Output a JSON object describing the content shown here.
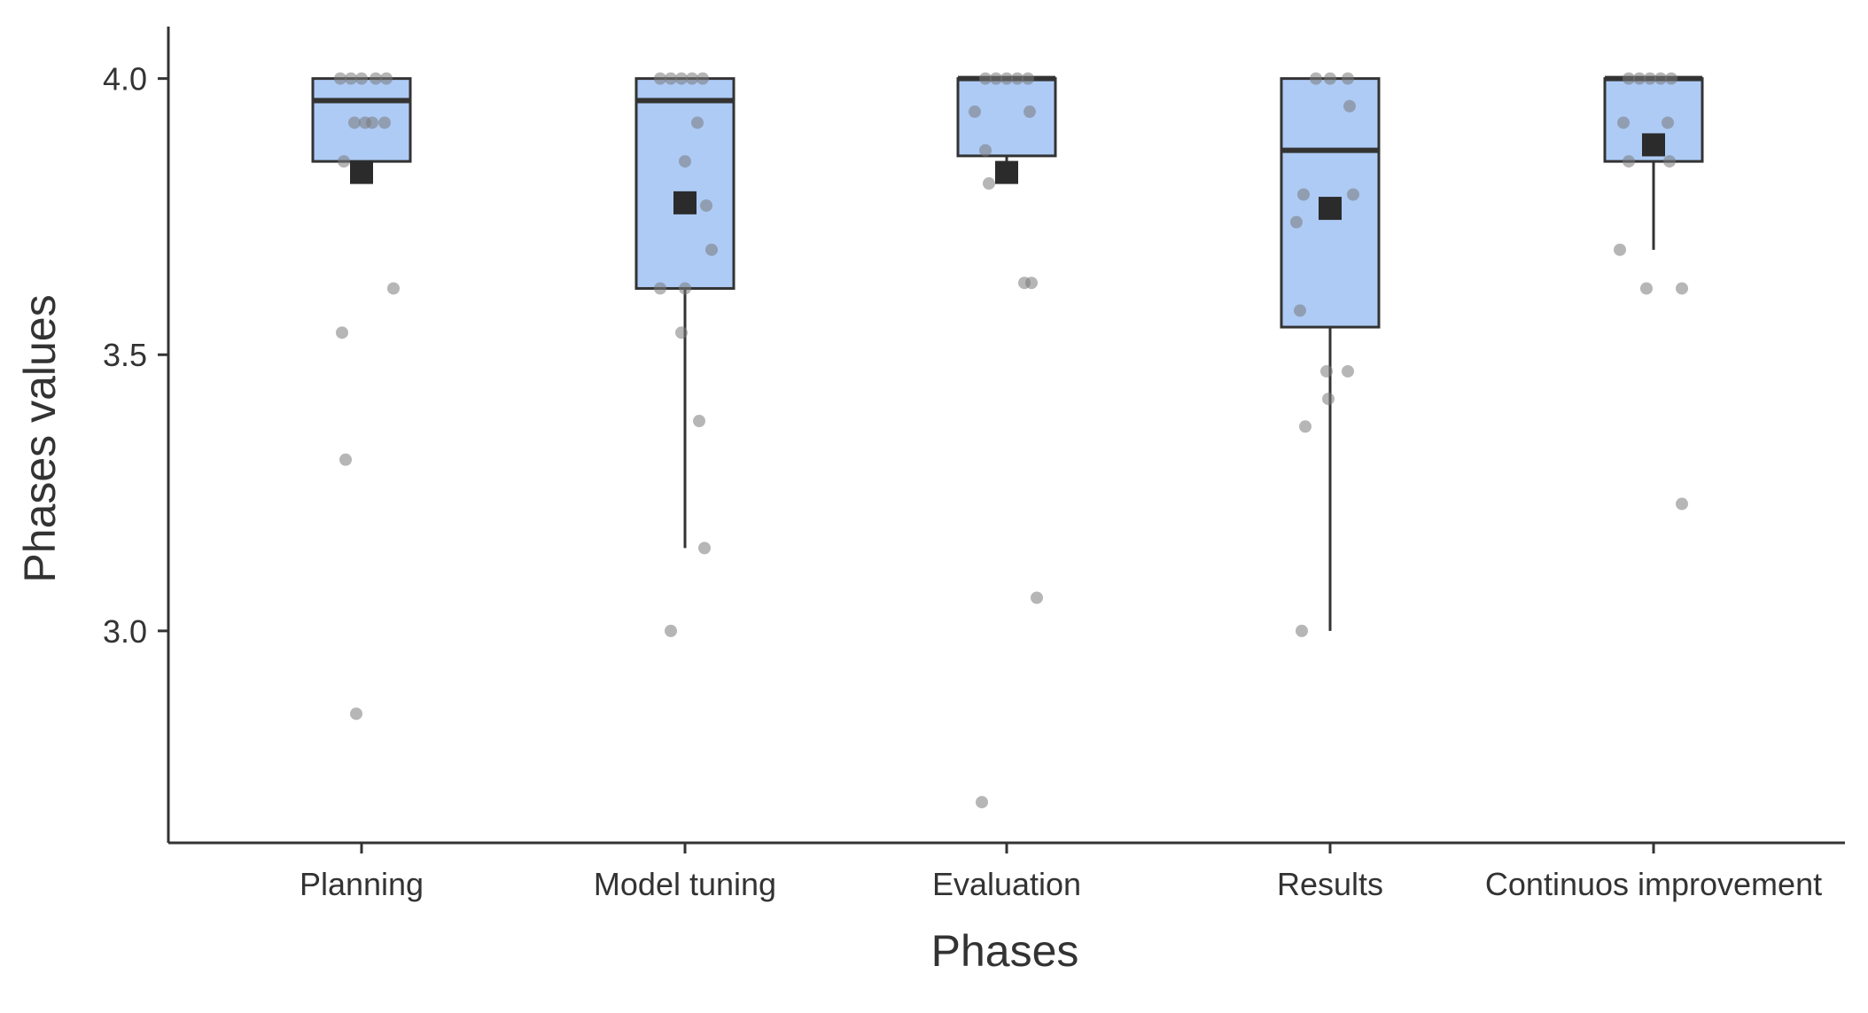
{
  "chart_data": {
    "type": "boxplot",
    "title": "",
    "xlabel": "Phases",
    "ylabel": "Phases values",
    "ylim": [
      2.65,
      4.07
    ],
    "yticks": [
      3.0,
      3.5,
      4.0
    ],
    "ytick_labels": [
      "3.0",
      "3.5",
      "4.0"
    ],
    "grid": false,
    "legend": "none",
    "colors": {
      "box_fill": "#aecbf5",
      "line": "#333333",
      "point": "#7a7a7a",
      "mean": "#2b2b2b"
    },
    "categories": [
      "Planning",
      "Model tuning",
      "Evaluation",
      "Results",
      "Continuos improvement"
    ],
    "series": [
      {
        "name": "Planning",
        "q1": 3.85,
        "median": 3.96,
        "q3": 4.0,
        "whisker_low": 3.85,
        "whisker_high": 4.0,
        "mean": 3.83,
        "points": [
          [
            -0.12,
            4.0
          ],
          [
            -0.06,
            4.0
          ],
          [
            0.0,
            4.0
          ],
          [
            0.08,
            4.0
          ],
          [
            0.14,
            4.0
          ],
          [
            -0.04,
            3.92
          ],
          [
            0.02,
            3.92
          ],
          [
            0.06,
            3.92
          ],
          [
            0.13,
            3.92
          ],
          [
            -0.1,
            3.85
          ],
          [
            0.18,
            3.62
          ],
          [
            -0.11,
            3.54
          ],
          [
            -0.09,
            3.31
          ],
          [
            -0.03,
            2.85
          ]
        ]
      },
      {
        "name": "Model tuning",
        "q1": 3.62,
        "median": 3.96,
        "q3": 4.0,
        "whisker_low": 3.15,
        "whisker_high": 4.0,
        "mean": 3.775,
        "points": [
          [
            -0.14,
            4.0
          ],
          [
            -0.08,
            4.0
          ],
          [
            -0.02,
            4.0
          ],
          [
            0.04,
            4.0
          ],
          [
            0.1,
            4.0
          ],
          [
            0.07,
            3.92
          ],
          [
            0.0,
            3.85
          ],
          [
            0.12,
            3.77
          ],
          [
            0.15,
            3.69
          ],
          [
            -0.14,
            3.62
          ],
          [
            0.0,
            3.62
          ],
          [
            -0.02,
            3.54
          ],
          [
            0.08,
            3.38
          ],
          [
            0.11,
            3.15
          ],
          [
            -0.08,
            3.0
          ]
        ]
      },
      {
        "name": "Evaluation",
        "q1": 3.86,
        "median": 4.0,
        "q3": 4.0,
        "whisker_low": 3.83,
        "whisker_high": 4.0,
        "mean": 3.83,
        "points": [
          [
            -0.12,
            4.0
          ],
          [
            -0.06,
            4.0
          ],
          [
            0.0,
            4.0
          ],
          [
            0.06,
            4.0
          ],
          [
            0.12,
            4.0
          ],
          [
            -0.18,
            3.94
          ],
          [
            0.13,
            3.94
          ],
          [
            -0.12,
            3.87
          ],
          [
            -0.1,
            3.81
          ],
          [
            0.1,
            3.63
          ],
          [
            0.14,
            3.63
          ],
          [
            0.17,
            3.06
          ],
          [
            -0.14,
            2.69
          ]
        ]
      },
      {
        "name": "Results",
        "q1": 3.55,
        "median": 3.87,
        "q3": 4.0,
        "whisker_low": 3.0,
        "whisker_high": 4.0,
        "mean": 3.765,
        "points": [
          [
            -0.08,
            4.0
          ],
          [
            0.0,
            4.0
          ],
          [
            0.1,
            4.0
          ],
          [
            0.11,
            3.95
          ],
          [
            -0.15,
            3.79
          ],
          [
            0.13,
            3.79
          ],
          [
            -0.19,
            3.74
          ],
          [
            -0.17,
            3.58
          ],
          [
            -0.02,
            3.47
          ],
          [
            0.1,
            3.47
          ],
          [
            -0.01,
            3.42
          ],
          [
            -0.14,
            3.37
          ],
          [
            -0.16,
            3.0
          ]
        ]
      },
      {
        "name": "Continuos improvement",
        "q1": 3.85,
        "median": 4.0,
        "q3": 4.0,
        "whisker_low": 3.69,
        "whisker_high": 4.0,
        "mean": 3.88,
        "points": [
          [
            -0.14,
            4.0
          ],
          [
            -0.08,
            4.0
          ],
          [
            -0.02,
            4.0
          ],
          [
            0.04,
            4.0
          ],
          [
            0.1,
            4.0
          ],
          [
            -0.17,
            3.92
          ],
          [
            0.08,
            3.92
          ],
          [
            -0.14,
            3.85
          ],
          [
            0.09,
            3.85
          ],
          [
            -0.19,
            3.69
          ],
          [
            -0.04,
            3.62
          ],
          [
            0.16,
            3.62
          ],
          [
            0.16,
            3.23
          ]
        ]
      }
    ]
  }
}
